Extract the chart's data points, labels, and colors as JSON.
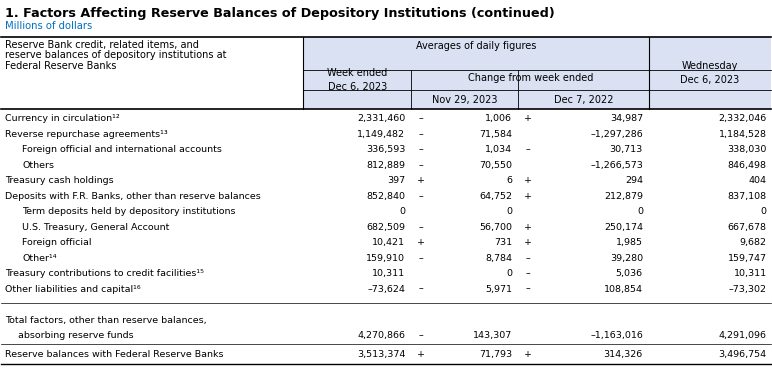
{
  "title": "1. Factors Affecting Reserve Balances of Depository Institutions (continued)",
  "subtitle": "Millions of dollars",
  "title_color": "#000000",
  "subtitle_color": "#0070C0",
  "bg_color": "#FFFFFF",
  "header_bg": "#D9E1F2",
  "rows": [
    {
      "label": "Currency in circulation¹²",
      "indent": 0,
      "col1": "2,331,460",
      "sign2": "–",
      "col2": "1,006",
      "sign3": "+",
      "col3": "34,987",
      "col4": "2,332,046"
    },
    {
      "label": "Reverse repurchase agreements¹³",
      "indent": 0,
      "col1": "1,149,482",
      "sign2": "–",
      "col2": "71,584",
      "sign3": "",
      "col3": "–1,297,286",
      "col4": "1,184,528"
    },
    {
      "label": "Foreign official and international accounts",
      "indent": 1,
      "col1": "336,593",
      "sign2": "–",
      "col2": "1,034",
      "sign3": "–",
      "col3": "30,713",
      "col4": "338,030"
    },
    {
      "label": "Others",
      "indent": 1,
      "col1": "812,889",
      "sign2": "–",
      "col2": "70,550",
      "sign3": "",
      "col3": "–1,266,573",
      "col4": "846,498"
    },
    {
      "label": "Treasury cash holdings",
      "indent": 0,
      "col1": "397",
      "sign2": "+",
      "col2": "6",
      "sign3": "+",
      "col3": "294",
      "col4": "404"
    },
    {
      "label": "Deposits with F.R. Banks, other than reserve balances",
      "indent": 0,
      "col1": "852,840",
      "sign2": "–",
      "col2": "64,752",
      "sign3": "+",
      "col3": "212,879",
      "col4": "837,108"
    },
    {
      "label": "Term deposits held by depository institutions",
      "indent": 1,
      "col1": "0",
      "sign2": "",
      "col2": "0",
      "sign3": "",
      "col3": "0",
      "col4": "0"
    },
    {
      "label": "U.S. Treasury, General Account",
      "indent": 1,
      "col1": "682,509",
      "sign2": "–",
      "col2": "56,700",
      "sign3": "+",
      "col3": "250,174",
      "col4": "667,678"
    },
    {
      "label": "Foreign official",
      "indent": 1,
      "col1": "10,421",
      "sign2": "+",
      "col2": "731",
      "sign3": "+",
      "col3": "1,985",
      "col4": "9,682"
    },
    {
      "label": "Other¹⁴",
      "indent": 1,
      "col1": "159,910",
      "sign2": "–",
      "col2": "8,784",
      "sign3": "–",
      "col3": "39,280",
      "col4": "159,747"
    },
    {
      "label": "Treasury contributions to credit facilities¹⁵",
      "indent": 0,
      "col1": "10,311",
      "sign2": "",
      "col2": "0",
      "sign3": "–",
      "col3": "5,036",
      "col4": "10,311"
    },
    {
      "label": "Other liabilities and capital¹⁶",
      "indent": 0,
      "col1": "–73,624",
      "sign2": "–",
      "col2": "5,971",
      "sign3": "–",
      "col3": "108,854",
      "col4": "–73,302"
    }
  ],
  "total_row": {
    "label1": "Total factors, other than reserve balances,",
    "label2": "absorbing reserve funds",
    "col1": "4,270,866",
    "sign2": "–",
    "col2": "143,307",
    "sign3": "",
    "col3": "–1,163,016",
    "col4": "4,291,096"
  },
  "final_row": {
    "label": "Reserve balances with Federal Reserve Banks",
    "col1": "3,513,374",
    "sign2": "+",
    "col2": "71,793",
    "sign3": "+",
    "col3": "314,326",
    "col4": "3,496,754"
  },
  "c0": 0.0,
  "c1": 0.392,
  "c2": 0.533,
  "c3": 0.672,
  "c4": 0.842,
  "c5": 1.0
}
